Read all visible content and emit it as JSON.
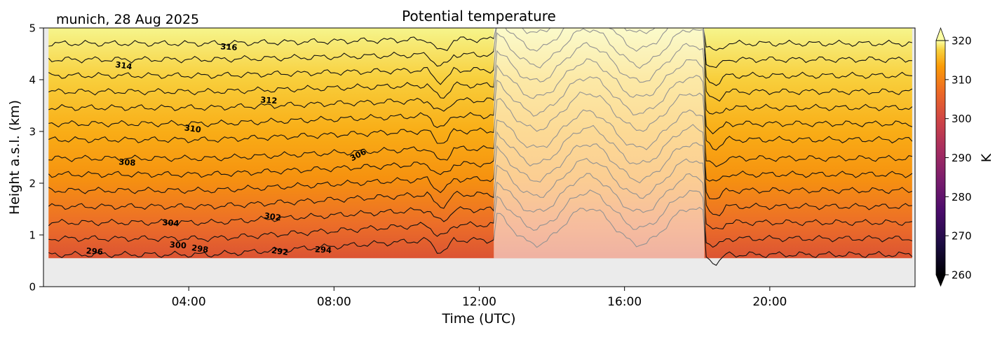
{
  "chart_data": {
    "type": "contour",
    "title": "Potential temperature",
    "subtitle": "munich, 28 Aug 2025",
    "xlabel": "Time (UTC)",
    "ylabel": "Height a.s.l. (km)",
    "xlim_hours": [
      0,
      24
    ],
    "ylim": [
      0,
      5
    ],
    "x_ticks": [
      {
        "value": 4,
        "label": "04:00"
      },
      {
        "value": 8,
        "label": "08:00"
      },
      {
        "value": 12,
        "label": "12:00"
      },
      {
        "value": 16,
        "label": "16:00"
      },
      {
        "value": 20,
        "label": "20:00"
      }
    ],
    "y_ticks": [
      {
        "value": 0,
        "label": "0"
      },
      {
        "value": 1,
        "label": "1"
      },
      {
        "value": 2,
        "label": "2"
      },
      {
        "value": 3,
        "label": "3"
      },
      {
        "value": 4,
        "label": "4"
      },
      {
        "value": 5,
        "label": "5"
      }
    ],
    "data_start_height_km": 0.55,
    "masked_period_hours": [
      12.4,
      18.2
    ],
    "colorbar": {
      "label": "K",
      "range": [
        260,
        320
      ],
      "ticks": [
        "260",
        "270",
        "280",
        "290",
        "300",
        "310",
        "320"
      ],
      "colormap": "inferno",
      "extend": "both"
    },
    "contour_levels": [
      292,
      294,
      296,
      298,
      300,
      302,
      304,
      306,
      308,
      310,
      312,
      314,
      316,
      318
    ],
    "contour_labels": [
      {
        "text": "316",
        "time": 5.1,
        "height": 4.58
      },
      {
        "text": "314",
        "time": 2.2,
        "height": 4.22
      },
      {
        "text": "312",
        "time": 6.2,
        "height": 3.55
      },
      {
        "text": "310",
        "time": 4.1,
        "height": 3.0
      },
      {
        "text": "308",
        "time": 2.3,
        "height": 2.35
      },
      {
        "text": "306",
        "time": 8.7,
        "height": 2.5
      },
      {
        "text": "304",
        "time": 3.5,
        "height": 1.18
      },
      {
        "text": "302",
        "time": 6.3,
        "height": 1.3
      },
      {
        "text": "300",
        "time": 3.7,
        "height": 0.75
      },
      {
        "text": "298",
        "time": 4.3,
        "height": 0.68
      },
      {
        "text": "296",
        "time": 1.4,
        "height": 0.63
      },
      {
        "text": "292",
        "time": 6.5,
        "height": 0.63
      },
      {
        "text": "294",
        "time": 7.7,
        "height": 0.66
      }
    ]
  }
}
